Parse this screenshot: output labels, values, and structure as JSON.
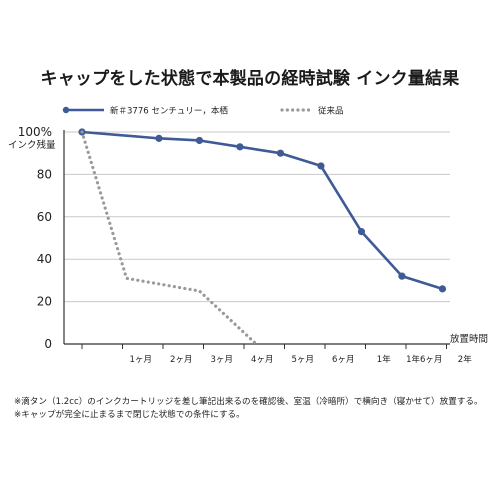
{
  "chart_data": {
    "type": "line",
    "title": "キャップをした状態で本製品の経時試験 インク量結果",
    "ylabel": "インク残量",
    "xlabel": "放置時間",
    "categories": [
      "",
      "1ヶ月",
      "2ヶ月",
      "3ヶ月",
      "4ヶ月",
      "5ヶ月",
      "6ヶ月",
      "1年",
      "1年6ヶ月",
      "2年"
    ],
    "y_ticks": [
      "100%",
      "80",
      "60",
      "40",
      "20",
      "0"
    ],
    "ylim": [
      0,
      100
    ],
    "grid": "horizontal",
    "legend_position": "top-left",
    "series": [
      {
        "name": "新＃3776 センチュリー，本栖",
        "style": "solid",
        "color": "#3f5a96",
        "points": [
          {
            "x": 0,
            "y": 100
          },
          {
            "x": 1.9,
            "y": 97
          },
          {
            "x": 2.9,
            "y": 96
          },
          {
            "x": 3.9,
            "y": 93
          },
          {
            "x": 4.9,
            "y": 90
          },
          {
            "x": 5.9,
            "y": 84
          },
          {
            "x": 6.9,
            "y": 53
          },
          {
            "x": 7.9,
            "y": 32
          },
          {
            "x": 8.9,
            "y": 26
          }
        ]
      },
      {
        "name": "従来品",
        "style": "dotted",
        "color": "#9a9a9a",
        "points": [
          {
            "x": 0,
            "y": 100
          },
          {
            "x": 1.1,
            "y": 31
          },
          {
            "x": 2.9,
            "y": 25
          },
          {
            "x": 4.3,
            "y": 0
          }
        ]
      }
    ]
  },
  "notes": [
    "※滴タン（1.2cc）のインクカートリッジを差し筆記出来るのを確認後、室温（冷暗所）で横向き（寝かせて）放置する。",
    "※キャップが完全に止まるまで閉じた状態での条件にする。"
  ]
}
